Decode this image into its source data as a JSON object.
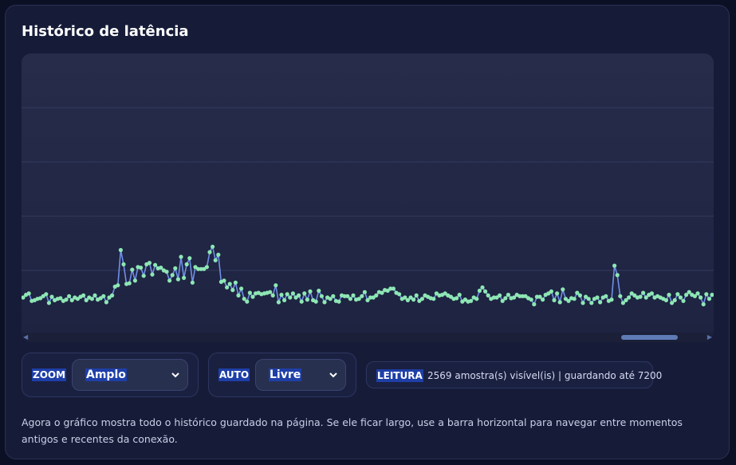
{
  "panel": {
    "title": "Histórico de latência"
  },
  "controls": {
    "zoom": {
      "label": "ZOOM",
      "value": "Amplo"
    },
    "auto": {
      "label": "AUTO",
      "value": "Livre"
    },
    "reading": {
      "label": "LEITURA",
      "text": "2569 amostra(s) visível(is) | guardando até 7200"
    }
  },
  "note": "Agora o gráfico mostra todo o histórico guardado na página. Se ele ficar largo, use a barra horizontal para navegar entre momentos antigos e recentes da conexão.",
  "scrollbar": {
    "thumb_position_fraction": 0.88
  },
  "colors": {
    "line": "#6f8fe8",
    "points": "#8ee6b4",
    "grid": "#343b5e",
    "accent": "#1e3fa8"
  },
  "chart_data": {
    "type": "line",
    "grid": true,
    "title": "",
    "xlabel": "",
    "ylabel": "",
    "ylim": [
      0,
      400
    ],
    "y_gridlines": [
      80,
      160,
      240,
      320
    ],
    "values": [
      40,
      44,
      46,
      35,
      36,
      38,
      39,
      42,
      45,
      32,
      41,
      36,
      38,
      39,
      35,
      37,
      42,
      36,
      40,
      38,
      41,
      43,
      36,
      40,
      38,
      43,
      37,
      39,
      42,
      33,
      40,
      43,
      56,
      58,
      110,
      89,
      60,
      61,
      81,
      65,
      85,
      84,
      72,
      89,
      91,
      74,
      88,
      83,
      84,
      80,
      78,
      65,
      73,
      83,
      67,
      100,
      69,
      89,
      98,
      62,
      85,
      82,
      82,
      82,
      85,
      107,
      115,
      95,
      103,
      63,
      65,
      55,
      60,
      51,
      62,
      43,
      53,
      38,
      34,
      47,
      41,
      46,
      47,
      45,
      46,
      47,
      48,
      43,
      58,
      33,
      44,
      36,
      45,
      40,
      46,
      40,
      43,
      34,
      46,
      37,
      49,
      36,
      34,
      50,
      42,
      33,
      40,
      38,
      42,
      35,
      34,
      43,
      42,
      42,
      38,
      43,
      37,
      38,
      42,
      48,
      36,
      40,
      40,
      43,
      48,
      47,
      51,
      50,
      53,
      53,
      47,
      45,
      38,
      40,
      36,
      40,
      37,
      43,
      35,
      38,
      43,
      41,
      39,
      38,
      46,
      43,
      44,
      46,
      43,
      41,
      38,
      39,
      44,
      34,
      37,
      34,
      35,
      40,
      38,
      50,
      55,
      49,
      43,
      38,
      40,
      40,
      43,
      35,
      39,
      44,
      39,
      40,
      44,
      42,
      42,
      42,
      39,
      37,
      30,
      41,
      41,
      37,
      44,
      46,
      49,
      36,
      46,
      33,
      52,
      38,
      35,
      39,
      38,
      47,
      43,
      32,
      41,
      38,
      32,
      38,
      40,
      33,
      40,
      42,
      35,
      37,
      87,
      73,
      42,
      32,
      36,
      40,
      46,
      43,
      40,
      41,
      47,
      40,
      44,
      46,
      40,
      42,
      40,
      38,
      36,
      44,
      32,
      36,
      45,
      40,
      35,
      44,
      48,
      44,
      42,
      46,
      40,
      30,
      45,
      38,
      44
    ]
  }
}
